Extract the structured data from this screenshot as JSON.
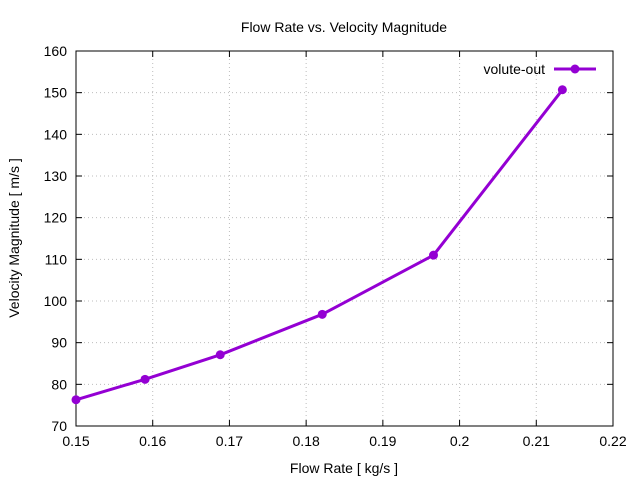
{
  "chart_data": {
    "type": "line",
    "title": "Flow Rate vs. Velocity Magnitude",
    "xlabel": "Flow Rate [ kg/s ]",
    "ylabel": "Velocity Magnitude [ m/s ]",
    "xlim": [
      0.15,
      0.22
    ],
    "ylim": [
      70,
      160
    ],
    "xticks": [
      "0.15",
      "0.16",
      "0.17",
      "0.18",
      "0.19",
      "0.2",
      "0.21",
      "0.22"
    ],
    "yticks": [
      "70",
      "80",
      "90",
      "100",
      "110",
      "120",
      "130",
      "140",
      "150",
      "160"
    ],
    "grid": true,
    "legend_position": "top-right",
    "series": [
      {
        "name": "volute-out",
        "color": "#9400d3",
        "marker": "circle",
        "x": [
          0.15,
          0.159,
          0.1688,
          0.1821,
          0.1966,
          0.2134
        ],
        "y": [
          76.3,
          81.2,
          87.1,
          96.8,
          111.0,
          150.7
        ]
      }
    ]
  }
}
